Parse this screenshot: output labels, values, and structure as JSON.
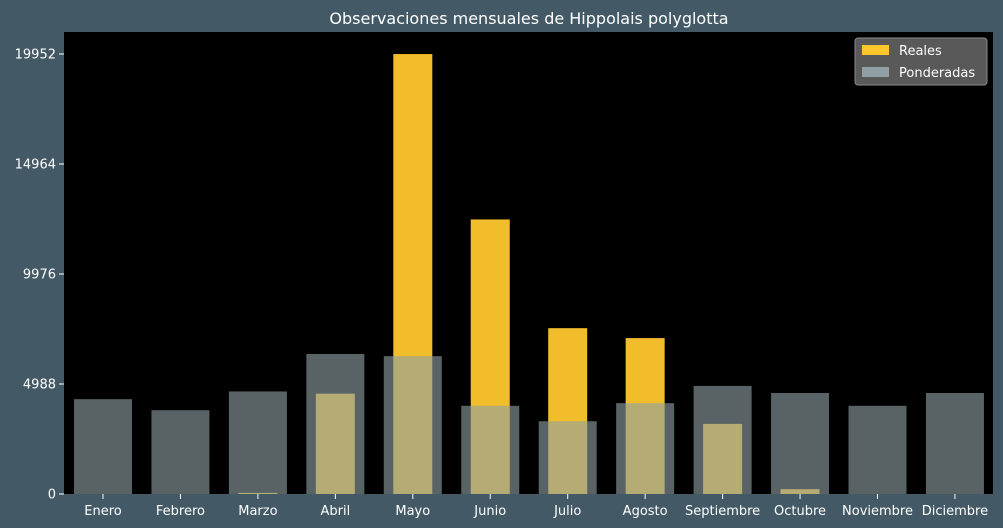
{
  "chart_data": {
    "type": "bar",
    "title": "Observaciones mensuales de Hippolais polyglotta",
    "xlabel": "",
    "ylabel": "",
    "categories": [
      "Enero",
      "Febrero",
      "Marzo",
      "Abril",
      "Mayo",
      "Junio",
      "Julio",
      "Agosto",
      "Septiembre",
      "Octubre",
      "Noviembre",
      "Diciembre"
    ],
    "series": [
      {
        "name": "Reales",
        "color": "#ffc72c",
        "values": [
          0,
          0,
          50,
          4550,
          19950,
          12450,
          7520,
          7070,
          3180,
          220,
          0,
          0
        ]
      },
      {
        "name": "Ponderadas",
        "color": "#8f9fa3",
        "values": [
          4300,
          3800,
          4650,
          6350,
          6250,
          4000,
          3300,
          4120,
          4900,
          4580,
          4000,
          4580
        ]
      }
    ],
    "yticks": [
      0,
      4988,
      9976,
      14964,
      19952
    ],
    "ylim": [
      0,
      20950
    ],
    "legend": "top-right",
    "grid": false,
    "colors": {
      "page_background": "#435a66",
      "plot_background": "#000000",
      "text": "#ffffff"
    }
  }
}
